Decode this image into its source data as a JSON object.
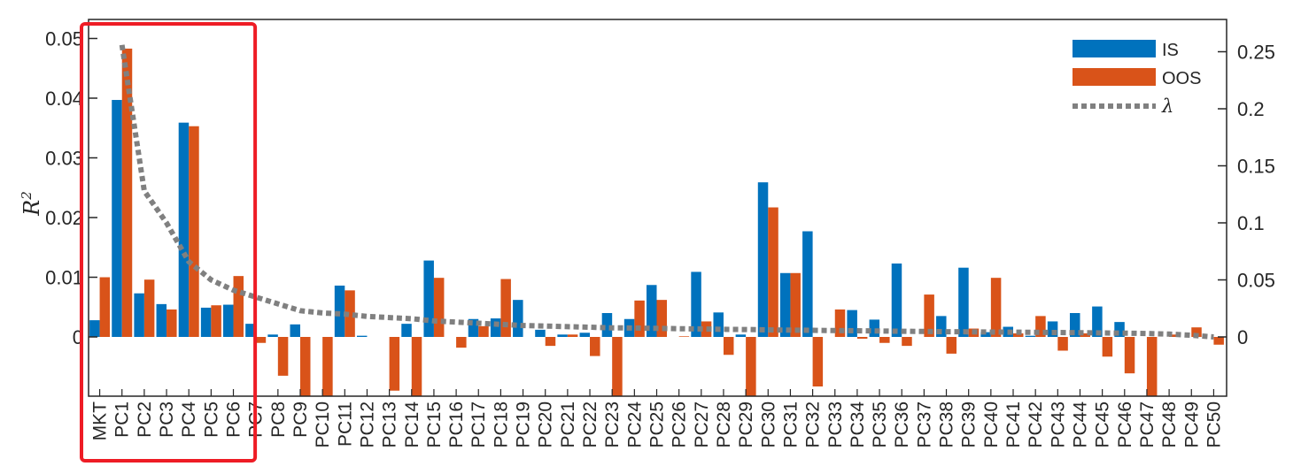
{
  "chart_data": {
    "type": "bar",
    "title": "",
    "xlabel": "",
    "ylabel": "R",
    "ylabel_superscript": "2",
    "ylim": [
      -0.01,
      0.0525
    ],
    "y2lim": [
      -0.053,
      0.28
    ],
    "yticks": [
      "0",
      "0.01",
      "0.02",
      "0.03",
      "0.04",
      "0.05"
    ],
    "yticks_values": [
      0,
      0.01,
      0.02,
      0.03,
      0.04,
      0.05
    ],
    "y2ticks": [
      "0",
      "0.05",
      "0.1",
      "0.15",
      "0.2",
      "0.25"
    ],
    "y2ticks_values": [
      0,
      0.05,
      0.1,
      0.15,
      0.2,
      0.25
    ],
    "grid": false,
    "legend_position": "top-right",
    "categories": [
      "MKT",
      "PC1",
      "PC2",
      "PC3",
      "PC4",
      "PC5",
      "PC6",
      "PC7",
      "PC8",
      "PC9",
      "PC10",
      "PC11",
      "PC12",
      "PC13",
      "PC14",
      "PC15",
      "PC16",
      "PC17",
      "PC18",
      "PC19",
      "PC20",
      "PC21",
      "PC22",
      "PC23",
      "PC24",
      "PC25",
      "PC26",
      "PC27",
      "PC28",
      "PC29",
      "PC30",
      "PC31",
      "PC32",
      "PC33",
      "PC34",
      "PC35",
      "PC36",
      "PC37",
      "PC38",
      "PC39",
      "PC40",
      "PC41",
      "PC42",
      "PC43",
      "PC44",
      "PC45",
      "PC46",
      "PC47",
      "PC48",
      "PC49",
      "PC50"
    ],
    "series": [
      {
        "name": "IS",
        "color": "#0072BD",
        "axis": "left",
        "values": [
          0.0028,
          0.0397,
          0.0073,
          0.0055,
          0.0359,
          0.0049,
          0.0054,
          0.0022,
          0.0004,
          0.0021,
          0.0,
          0.0086,
          0.0002,
          0.0,
          0.0022,
          0.0128,
          0.0,
          0.003,
          0.0031,
          0.0062,
          0.0012,
          0.0004,
          0.0007,
          0.004,
          0.003,
          0.0087,
          0.0,
          0.0109,
          0.0041,
          0.0004,
          0.0259,
          0.0107,
          0.0177,
          0.0,
          0.0045,
          0.0029,
          0.0123,
          0.0,
          0.0035,
          0.0116,
          0.0008,
          0.0017,
          0.0002,
          0.0026,
          0.004,
          0.0051,
          0.0025,
          0.0,
          0.0,
          0.0,
          0.0
        ]
      },
      {
        "name": "OOS",
        "color": "#D95319",
        "axis": "left",
        "values": [
          0.01,
          0.0483,
          0.0096,
          0.0046,
          0.0353,
          0.0053,
          0.0102,
          -0.001,
          -0.0065,
          -0.01,
          -0.01,
          0.0078,
          0.0,
          -0.009,
          -0.01,
          0.0099,
          -0.0018,
          0.0018,
          0.0097,
          0.0,
          -0.0015,
          0.0004,
          -0.0032,
          -0.01,
          0.0061,
          0.0062,
          0.0001,
          0.0026,
          -0.003,
          -0.01,
          0.0217,
          0.0107,
          -0.0083,
          0.0046,
          -0.0003,
          -0.001,
          -0.0015,
          0.0071,
          -0.0028,
          0.0014,
          0.0099,
          0.0006,
          0.0035,
          -0.0023,
          0.0006,
          -0.0033,
          -0.0061,
          -0.01,
          0.0004,
          0.0016,
          -0.0013
        ]
      },
      {
        "name": "λ",
        "color": "#808080",
        "axis": "right",
        "style": "dotted-line",
        "values": [
          null,
          0.256,
          0.128,
          0.1,
          0.066,
          0.05,
          0.041,
          0.035,
          0.029,
          0.023,
          0.021,
          0.02,
          0.018,
          0.017,
          0.016,
          0.014,
          0.013,
          0.012,
          0.011,
          0.01,
          0.0095,
          0.009,
          0.0085,
          0.008,
          0.0078,
          0.0075,
          0.0072,
          0.007,
          0.0067,
          0.0065,
          0.0062,
          0.006,
          0.0058,
          0.0056,
          0.0054,
          0.0052,
          0.005,
          0.0048,
          0.0046,
          0.0045,
          0.0043,
          0.0042,
          0.004,
          0.0039,
          0.0037,
          0.0035,
          0.0033,
          0.003,
          0.0025,
          0.0015,
          0.0
        ]
      }
    ],
    "annotations": [
      {
        "type": "highlight-box",
        "color": "#EE1C25",
        "from_category": "MKT",
        "to_category": "PC6"
      }
    ]
  }
}
